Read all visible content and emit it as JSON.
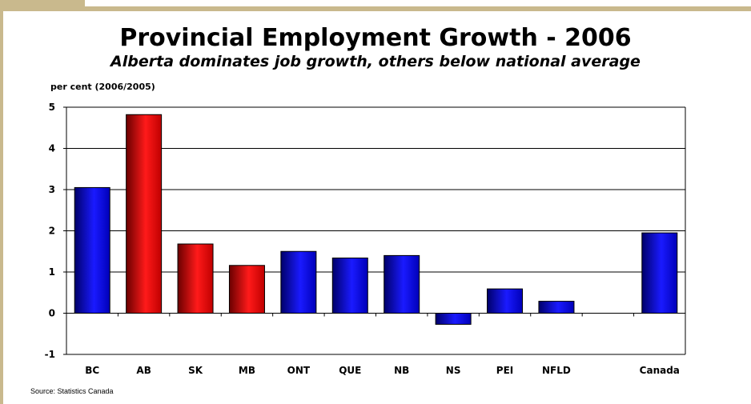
{
  "title": "Provincial Employment Growth - 2006",
  "subtitle": "Alberta dominates job growth, others below national average",
  "source": "Source: Statistics Canada",
  "colors": {
    "blue": "#1a1aff",
    "red": "#e00000",
    "frame": "#c9b98d"
  },
  "chart_data": {
    "type": "bar",
    "title": "Provincial Employment Growth - 2006",
    "subtitle": "Alberta dominates job growth, others below national average",
    "ylabel": "per cent (2006/2005)",
    "xlabel": "",
    "categories": [
      "BC",
      "AB",
      "SK",
      "MB",
      "ONT",
      "QUE",
      "NB",
      "NS",
      "PEI",
      "NFLD",
      "",
      "Canada"
    ],
    "values": [
      3.05,
      4.82,
      1.68,
      1.16,
      1.5,
      1.34,
      1.4,
      -0.27,
      0.59,
      0.29,
      null,
      1.95
    ],
    "bar_colors": [
      "blue",
      "red",
      "red",
      "red",
      "blue",
      "blue",
      "blue",
      "blue",
      "blue",
      "blue",
      null,
      "blue"
    ],
    "ylim": [
      -1,
      5
    ],
    "yticks": [
      -1,
      0,
      1,
      2,
      3,
      4,
      5
    ],
    "grid": true,
    "legend": "none"
  }
}
